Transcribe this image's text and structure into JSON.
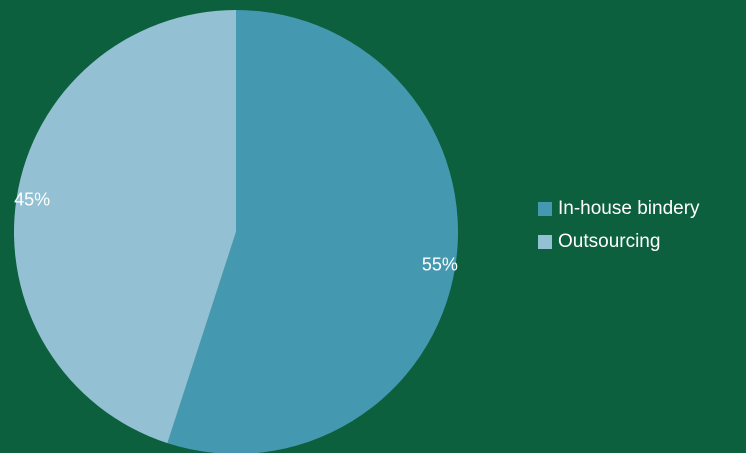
{
  "chart_data": {
    "type": "pie",
    "title": "",
    "categories": [
      "In-house bindery",
      "Outsourcing"
    ],
    "values": [
      55,
      45
    ],
    "labels": [
      "55%",
      "45%"
    ],
    "colors": [
      "#4499b1",
      "#93c1d3"
    ],
    "legend_position": "right"
  },
  "colors": {
    "background": "#0c603d",
    "text": "#ffffff"
  }
}
